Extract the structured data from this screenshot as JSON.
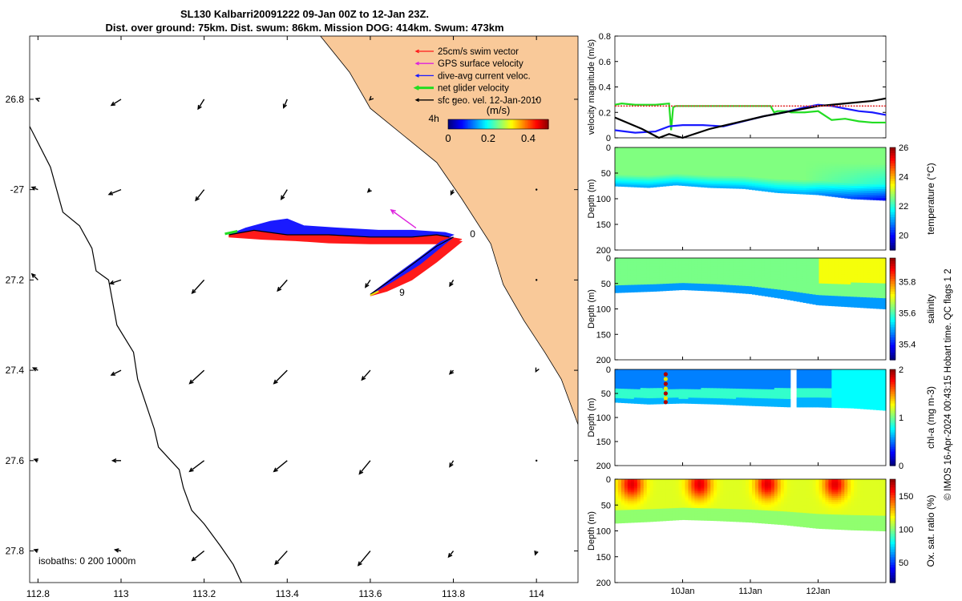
{
  "title_line1": "SL130 Kalbarri20091222 09-Jan 00Z to 12-Jan 23Z.",
  "title_line2": "Dist. over ground: 75km. Dist. swum: 86km. Mission DOG: 414km. Swum: 473km",
  "credit": "© IMOS 16-Apr-2024 00:43:15 Hobart time. QC flags 1  2",
  "colors": {
    "land": "#f9c999",
    "swim": "#ff1a1a",
    "gps": "#dd22dd",
    "dive": "#1a1aff",
    "net": "#22dd22",
    "geo": "#000000",
    "ref": "#e03030"
  },
  "chart_data": [
    {
      "id": "map",
      "type": "map",
      "xlim": [
        112.78,
        114.1
      ],
      "ylim": [
        -27.87,
        -26.66
      ],
      "x_ticks": [
        112.8,
        113,
        113.2,
        113.4,
        113.6,
        113.8,
        114
      ],
      "x_tick_labels": [
        "112.8",
        "113",
        "113.2",
        "113.4",
        "113.6",
        "113.8",
        "114"
      ],
      "y_ticks": [
        -26.8,
        -27,
        -27.2,
        -27.4,
        -27.6,
        -27.8
      ],
      "y_tick_labels": [
        "26.8",
        "-27",
        "27.2",
        "27.4",
        "27.6",
        "27.8"
      ],
      "legend": {
        "position": "top-right",
        "items": [
          {
            "label": "25cm/s swim vector",
            "color": "#ff1a1a"
          },
          {
            "label": "GPS surface velocity",
            "color": "#dd22dd"
          },
          {
            "label": "dive-avg current veloc.",
            "color": "#1a1aff"
          },
          {
            "label": "net glider velocity",
            "color": "#22dd22"
          },
          {
            "label": "sfc geo. vel. 12-Jan-2010",
            "color": "#000000"
          }
        ]
      },
      "colorbar": {
        "label": "(m/s)",
        "ticks": [
          0,
          0.2,
          0.4
        ],
        "tick_labels": [
          "0",
          "0.2",
          "0.4"
        ],
        "range": [
          0,
          0.5
        ]
      },
      "track_labels": [
        {
          "text": "4h",
          "lon": 113.74,
          "lat": -26.85
        },
        {
          "text": "0",
          "lon": 113.84,
          "lat": -27.105
        },
        {
          "text": "9",
          "lon": 113.67,
          "lat": -27.235
        }
      ],
      "isobaths_label": "isobaths: 0   200   1000m",
      "coastline": [
        [
          113.48,
          -26.66
        ],
        [
          113.55,
          -26.74
        ],
        [
          113.6,
          -26.82
        ],
        [
          113.68,
          -26.88
        ],
        [
          113.76,
          -26.94
        ],
        [
          113.82,
          -27.02
        ],
        [
          113.89,
          -27.12
        ],
        [
          113.92,
          -27.21
        ],
        [
          113.97,
          -27.29
        ],
        [
          114.02,
          -27.36
        ],
        [
          114.06,
          -27.42
        ],
        [
          114.1,
          -27.52
        ]
      ],
      "isobath_200": [
        [
          112.78,
          -26.86
        ],
        [
          112.83,
          -26.95
        ],
        [
          112.86,
          -27.05
        ],
        [
          112.9,
          -27.08
        ],
        [
          112.93,
          -27.13
        ],
        [
          112.94,
          -27.18
        ],
        [
          112.97,
          -27.2
        ],
        [
          112.99,
          -27.3
        ],
        [
          113.03,
          -27.36
        ],
        [
          113.04,
          -27.42
        ],
        [
          113.08,
          -27.53
        ],
        [
          113.09,
          -27.57
        ],
        [
          113.12,
          -27.6
        ],
        [
          113.14,
          -27.62
        ],
        [
          113.15,
          -27.66
        ],
        [
          113.17,
          -27.71
        ],
        [
          113.2,
          -27.74
        ],
        [
          113.24,
          -27.79
        ],
        [
          113.27,
          -27.83
        ],
        [
          113.29,
          -27.87
        ]
      ],
      "geo_grid_lon": [
        112.8,
        113,
        113.2,
        113.4,
        113.6,
        113.8,
        114
      ],
      "geo_grid_lat": [
        -26.8,
        -27,
        -27.2,
        -27.4,
        -27.6,
        -27.8
      ],
      "geo_vectors": [
        [
          0.015,
          0.005,
          0.08,
          -0.05,
          0.05,
          -0.08,
          0.03,
          -0.07,
          0.005,
          -0.005,
          0,
          0,
          0,
          0
        ],
        [
          0.05,
          0.02,
          0.1,
          -0.04,
          0.07,
          -0.09,
          0.05,
          -0.08,
          0.02,
          -0.02,
          0.02,
          -0.04,
          0,
          0
        ],
        [
          0.05,
          0.05,
          0.09,
          -0.03,
          0.1,
          -0.11,
          0.08,
          -0.09,
          0.04,
          -0.06,
          0.03,
          -0.05,
          0,
          0
        ],
        [
          0.04,
          0.02,
          0.08,
          -0.04,
          0.12,
          -0.11,
          0.11,
          -0.11,
          0.07,
          -0.08,
          0.03,
          -0.03,
          0.005,
          -0.01
        ],
        [
          0.03,
          0.01,
          0.07,
          0,
          0.12,
          -0.09,
          0.11,
          -0.09,
          0.09,
          -0.11,
          0.03,
          -0.05,
          0,
          0
        ],
        [
          0.03,
          0.01,
          0.05,
          0.01,
          0.1,
          -0.08,
          0.1,
          -0.11,
          0.1,
          -0.12,
          0.04,
          -0.05,
          0.01,
          -0.03
        ]
      ]
    },
    {
      "id": "velocity",
      "type": "line",
      "ylabel": "velocity magnitude (m/s)",
      "ylim": [
        0,
        0.8
      ],
      "y_ticks": [
        0,
        0.2,
        0.4,
        0.6,
        0.8
      ],
      "y_tick_labels": [
        "0",
        "0.2",
        "0.4",
        "0.6",
        "0.8"
      ],
      "xlim": [
        9.0,
        13.0
      ],
      "series": [
        {
          "name": "net glider velocity",
          "color": "#22dd22",
          "x": [
            9.0,
            9.1,
            9.3,
            9.6,
            9.8,
            9.83,
            9.86,
            9.9,
            10.2,
            10.5,
            10.8,
            11.1,
            11.3,
            11.35,
            11.4,
            11.55,
            11.6,
            11.8,
            12.0,
            12.2,
            12.4,
            12.6,
            12.8,
            13.0
          ],
          "y": [
            0.26,
            0.27,
            0.26,
            0.26,
            0.27,
            0.06,
            0.24,
            0.25,
            0.25,
            0.25,
            0.25,
            0.25,
            0.25,
            0.2,
            0.21,
            0.21,
            0.2,
            0.2,
            0.21,
            0.14,
            0.15,
            0.13,
            0.12,
            0.12
          ]
        },
        {
          "name": "dive-avg current veloc.",
          "color": "#1a1aff",
          "x": [
            9.0,
            9.3,
            9.6,
            9.8,
            10.0,
            10.3,
            10.6,
            10.9,
            11.2,
            11.5,
            11.8,
            12.0,
            12.2,
            12.4,
            12.6,
            12.8,
            13.0
          ],
          "y": [
            0.06,
            0.04,
            0.05,
            0.09,
            0.1,
            0.1,
            0.09,
            0.13,
            0.17,
            0.2,
            0.24,
            0.26,
            0.25,
            0.23,
            0.21,
            0.2,
            0.18
          ]
        },
        {
          "name": "sfc geo. vel.",
          "color": "#000000",
          "x": [
            9.0,
            9.4,
            9.65,
            9.8,
            10.0,
            10.4,
            10.8,
            11.2,
            11.6,
            12.0,
            12.4,
            12.8,
            13.0
          ],
          "y": [
            0.16,
            0.07,
            0.0,
            0.03,
            0.0,
            0.07,
            0.12,
            0.17,
            0.21,
            0.25,
            0.27,
            0.29,
            0.31
          ]
        },
        {
          "name": "25cm/s reference",
          "color": "#e03030",
          "dashed": true,
          "x": [
            9.0,
            13.0
          ],
          "y": [
            0.25,
            0.25
          ]
        }
      ]
    },
    {
      "id": "temperature",
      "type": "heatmap",
      "cbar_label": "temperature (°C)",
      "clim": [
        19,
        26
      ],
      "cbar_ticks": [
        20,
        22,
        24,
        26
      ],
      "cbar_tick_labels": [
        "20",
        "22",
        "24",
        "26"
      ],
      "ylabel": "Depth (m)",
      "ylim": [
        0,
        200
      ],
      "y_ticks": [
        0,
        50,
        100,
        150,
        200
      ],
      "y_tick_labels": [
        "0",
        "50",
        "100",
        "150",
        "200"
      ],
      "surface_value": 22.5,
      "deep_value": 21.0,
      "bottom_depth": {
        "x": [
          9.0,
          9.5,
          9.9,
          10.4,
          10.9,
          11.4,
          12.0,
          12.5,
          13.0
        ],
        "y": [
          75,
          78,
          73,
          78,
          80,
          88,
          92,
          100,
          103
        ]
      }
    },
    {
      "id": "salinity",
      "type": "heatmap",
      "cbar_label": "salinity",
      "clim": [
        35.3,
        35.95
      ],
      "cbar_ticks": [
        35.4,
        35.6,
        35.8
      ],
      "cbar_tick_labels": [
        "35.4",
        "35.6",
        "35.8"
      ],
      "ylabel": "Depth (m)",
      "ylim": [
        0,
        200
      ],
      "y_ticks": [
        0,
        50,
        100,
        150,
        200
      ],
      "y_tick_labels": [
        "0",
        "50",
        "100",
        "150",
        "200"
      ],
      "surface_value": 35.62,
      "deep_value": 35.48,
      "bottom_depth": {
        "x": [
          9.0,
          9.6,
          10.0,
          10.5,
          11.0,
          11.5,
          12.0,
          12.5,
          13.0
        ],
        "y": [
          68,
          65,
          62,
          65,
          70,
          80,
          92,
          96,
          100
        ]
      }
    },
    {
      "id": "chla",
      "type": "heatmap",
      "cbar_label": "chl-a (mg m-3)",
      "clim": [
        0,
        2
      ],
      "cbar_ticks": [
        0,
        1,
        2
      ],
      "cbar_tick_labels": [
        "0",
        "1",
        "2"
      ],
      "ylabel": "Depth (m)",
      "ylim": [
        0,
        200
      ],
      "y_ticks": [
        0,
        50,
        100,
        150,
        200
      ],
      "y_tick_labels": [
        "0",
        "50",
        "100",
        "150",
        "200"
      ],
      "surface_value": 0.55,
      "deep_value": 0.85,
      "gap_x": [
        11.6,
        11.68
      ],
      "bottom_depth": {
        "x": [
          9.0,
          9.5,
          10.0,
          10.5,
          11.0,
          11.6,
          12.0,
          12.5,
          13.0
        ],
        "y": [
          68,
          72,
          70,
          72,
          75,
          78,
          78,
          80,
          85
        ]
      }
    },
    {
      "id": "oxygen",
      "type": "heatmap",
      "cbar_label": "Ox. sat. ratio (%)",
      "clim": [
        20,
        175
      ],
      "cbar_ticks": [
        50,
        100,
        150
      ],
      "cbar_tick_labels": [
        "50",
        "100",
        "150"
      ],
      "ylabel": "Depth (m)",
      "ylim": [
        0,
        200
      ],
      "y_ticks": [
        0,
        50,
        100,
        150,
        200
      ],
      "y_tick_labels": [
        "0",
        "50",
        "100",
        "150",
        "200"
      ],
      "surface_value": 112,
      "deep_value": 100,
      "blob_x": [
        9.25,
        10.25,
        11.25,
        12.25
      ],
      "blob_value": 160,
      "x_ticks": [
        10.0,
        11.0,
        12.0
      ],
      "x_tick_labels": [
        "10Jan",
        "11Jan",
        "12Jan"
      ],
      "bottom_depth": {
        "x": [
          9.0,
          9.5,
          10.0,
          10.5,
          11.0,
          11.5,
          12.0,
          12.5,
          13.0
        ],
        "y": [
          85,
          82,
          78,
          80,
          83,
          88,
          95,
          98,
          100
        ]
      }
    }
  ]
}
